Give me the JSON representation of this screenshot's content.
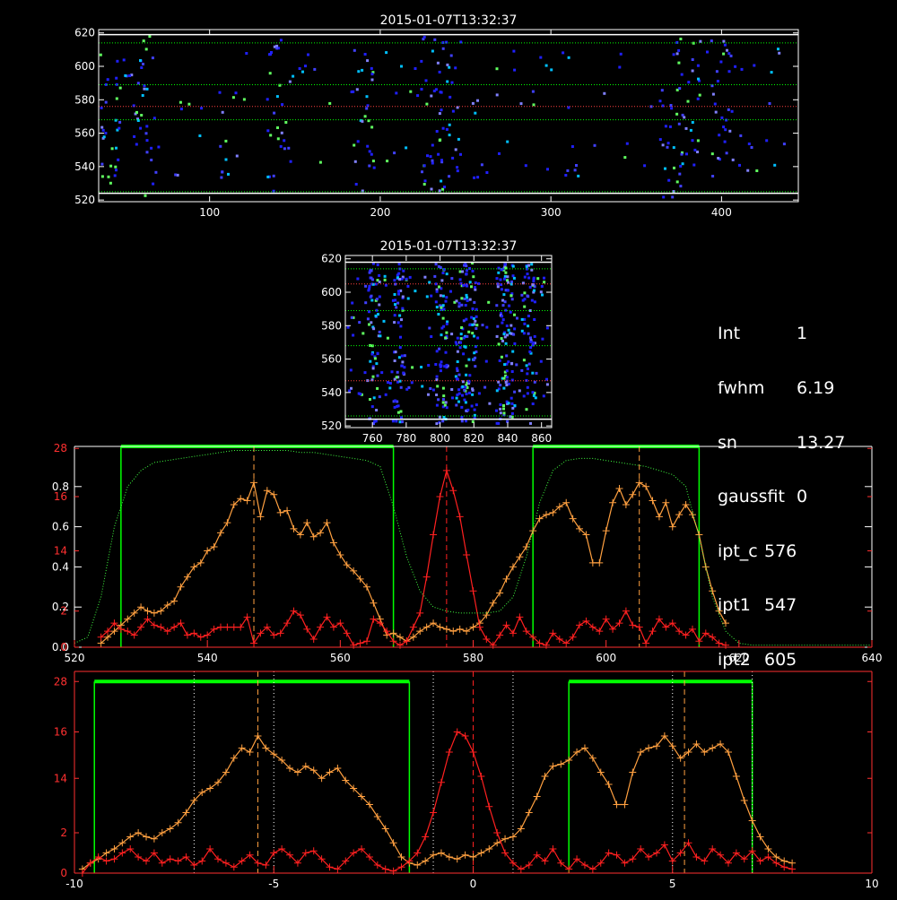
{
  "info_panel": {
    "rows": [
      {
        "label": "Int",
        "value": "1"
      },
      {
        "label": "fwhm",
        "value": "6.19"
      },
      {
        "label": "sn",
        "value": "13.27"
      },
      {
        "label": "gaussfit",
        "value": "0"
      },
      {
        "label": "ipt_c",
        "value": "576"
      },
      {
        "label": "ipt1",
        "value": "547"
      },
      {
        "label": "ipt2",
        "value": "605"
      }
    ]
  },
  "colors": {
    "background": "#000000",
    "axis": "#ffffff",
    "red_axis": "#ff3030",
    "orange_series": "#ffa040",
    "red_series": "#ff2020",
    "green_band": "#00ff00",
    "green_profile": "#40ff40",
    "red_guide": "#ff4040",
    "blob_blue": "#2020ff",
    "blob_cyan": "#00c0ff",
    "blob_green": "#60ff60"
  },
  "chart_data": [
    {
      "type": "heatmap",
      "title": "2015-01-07T13:32:37",
      "xlim": [
        35,
        445
      ],
      "ylim": [
        519,
        622
      ],
      "xticks": [
        100,
        200,
        300,
        400
      ],
      "yticks": [
        520,
        540,
        560,
        580,
        600,
        620
      ],
      "guide_lines": {
        "green_y": [
          525,
          568,
          589,
          614
        ],
        "red_y": [
          576
        ],
        "white_y": [
          524,
          619
        ]
      },
      "hot_columns_x": [
        40,
        60,
        140,
        190,
        230,
        240,
        370,
        380,
        400
      ]
    },
    {
      "type": "heatmap",
      "title": "2015-01-07T13:32:37",
      "xlim": [
        744,
        866
      ],
      "ylim": [
        519,
        622
      ],
      "xticks": [
        760,
        780,
        800,
        820,
        840,
        860
      ],
      "yticks": [
        520,
        540,
        560,
        580,
        600,
        620
      ],
      "guide_lines": {
        "green_y": [
          526,
          568,
          589,
          614
        ],
        "red_y": [
          547,
          605
        ],
        "white_y": [
          524,
          618
        ]
      },
      "hot_columns_x": [
        760,
        775,
        800,
        812,
        818,
        836,
        840,
        852
      ]
    },
    {
      "type": "line",
      "xlim": [
        520,
        640
      ],
      "ylim_left": [
        0,
        1.0
      ],
      "xticks": [
        520,
        540,
        560,
        580,
        600,
        620,
        640
      ],
      "yticks_white": [
        "0.0",
        "0.2",
        "0.4",
        "0.6",
        "0.8"
      ],
      "yticks_white_values": [
        0,
        0.2,
        0.4,
        0.6,
        0.8
      ],
      "yticks_red": [
        "0",
        "2",
        "14",
        "16",
        "28"
      ],
      "yticks_red_values": [
        0,
        0.18,
        0.48,
        0.75,
        0.99
      ],
      "green_bands": [
        [
          527,
          568
        ],
        [
          589,
          614
        ]
      ],
      "green_bar_y": 1.0,
      "center_x": 576,
      "dashed_orange_x": [
        547,
        605
      ],
      "series": [
        {
          "color": "orange",
          "x": [
            524,
            525,
            526,
            527,
            528,
            529,
            530,
            531,
            532,
            533,
            534,
            535,
            536,
            537,
            538,
            539,
            540,
            541,
            542,
            543,
            544,
            545,
            546,
            547,
            548,
            549,
            550,
            551,
            552,
            553,
            554,
            555,
            556,
            557,
            558,
            559,
            560,
            561,
            562,
            563,
            564,
            565,
            566,
            567,
            568,
            569,
            570,
            571,
            572,
            573,
            574,
            575,
            576,
            577,
            578,
            579,
            580,
            581,
            582,
            583,
            584,
            585,
            586,
            587,
            588,
            589,
            590,
            591,
            592,
            593,
            594,
            595,
            596,
            597,
            598,
            599,
            600,
            601,
            602,
            603,
            604,
            605,
            606,
            607,
            608,
            609,
            610,
            611,
            612,
            613,
            614,
            615,
            616,
            617,
            618
          ],
          "values": [
            0.02,
            0.05,
            0.08,
            0.11,
            0.14,
            0.17,
            0.2,
            0.18,
            0.17,
            0.18,
            0.21,
            0.23,
            0.3,
            0.35,
            0.4,
            0.42,
            0.48,
            0.5,
            0.57,
            0.62,
            0.71,
            0.74,
            0.73,
            0.82,
            0.65,
            0.78,
            0.76,
            0.67,
            0.68,
            0.59,
            0.56,
            0.62,
            0.55,
            0.57,
            0.62,
            0.52,
            0.46,
            0.41,
            0.38,
            0.34,
            0.3,
            0.22,
            0.14,
            0.06,
            0.07,
            0.05,
            0.03,
            0.05,
            0.08,
            0.1,
            0.12,
            0.1,
            0.09,
            0.08,
            0.09,
            0.08,
            0.1,
            0.12,
            0.16,
            0.22,
            0.27,
            0.34,
            0.4,
            0.45,
            0.5,
            0.58,
            0.64,
            0.66,
            0.67,
            0.7,
            0.72,
            0.64,
            0.59,
            0.56,
            0.42,
            0.42,
            0.58,
            0.72,
            0.79,
            0.71,
            0.76,
            0.82,
            0.8,
            0.73,
            0.65,
            0.72,
            0.6,
            0.66,
            0.71,
            0.66,
            0.56,
            0.4,
            0.28,
            0.18,
            0.12
          ]
        },
        {
          "color": "red",
          "x": [
            524,
            525,
            526,
            527,
            528,
            529,
            530,
            531,
            532,
            533,
            534,
            535,
            536,
            537,
            538,
            539,
            540,
            541,
            542,
            543,
            544,
            545,
            546,
            547,
            548,
            549,
            550,
            551,
            552,
            553,
            554,
            555,
            556,
            557,
            558,
            559,
            560,
            561,
            562,
            563,
            564,
            565,
            566,
            567,
            568,
            569,
            570,
            571,
            572,
            573,
            574,
            575,
            576,
            577,
            578,
            579,
            580,
            581,
            582,
            583,
            584,
            585,
            586,
            587,
            588,
            589,
            590,
            591,
            592,
            593,
            594,
            595,
            596,
            597,
            598,
            599,
            600,
            601,
            602,
            603,
            604,
            605,
            606,
            607,
            608,
            609,
            610,
            611,
            612,
            613,
            614,
            615,
            616,
            617,
            618
          ],
          "values": [
            0.05,
            0.08,
            0.12,
            0.09,
            0.08,
            0.06,
            0.1,
            0.14,
            0.11,
            0.1,
            0.08,
            0.1,
            0.12,
            0.06,
            0.07,
            0.05,
            0.06,
            0.09,
            0.1,
            0.1,
            0.1,
            0.1,
            0.15,
            0.02,
            0.07,
            0.1,
            0.06,
            0.07,
            0.12,
            0.18,
            0.16,
            0.09,
            0.04,
            0.1,
            0.15,
            0.1,
            0.12,
            0.07,
            0.01,
            0.02,
            0.03,
            0.14,
            0.12,
            0.08,
            0.03,
            0.01,
            0.03,
            0.1,
            0.17,
            0.35,
            0.56,
            0.75,
            0.88,
            0.78,
            0.65,
            0.46,
            0.28,
            0.1,
            0.04,
            0.01,
            0.06,
            0.11,
            0.07,
            0.15,
            0.08,
            0.05,
            0.02,
            0.01,
            0.07,
            0.04,
            0.02,
            0.05,
            0.11,
            0.13,
            0.1,
            0.08,
            0.14,
            0.09,
            0.12,
            0.18,
            0.11,
            0.1,
            0.02,
            0.08,
            0.14,
            0.1,
            0.12,
            0.08,
            0.06,
            0.09,
            0.03,
            0.07,
            0.05,
            0.02,
            0.01
          ]
        },
        {
          "color": "green",
          "x": [
            520,
            522,
            524,
            526,
            528,
            530,
            532,
            534,
            536,
            538,
            540,
            542,
            544,
            546,
            548,
            550,
            552,
            554,
            556,
            558,
            560,
            562,
            564,
            566,
            568,
            570,
            572,
            574,
            576,
            578,
            580,
            582,
            584,
            586,
            588,
            590,
            592,
            594,
            596,
            598,
            600,
            602,
            604,
            606,
            608,
            610,
            612,
            614,
            616,
            618,
            620,
            622,
            624,
            626,
            628,
            630,
            632,
            634,
            636,
            638,
            640
          ],
          "values": [
            0.02,
            0.05,
            0.25,
            0.6,
            0.8,
            0.88,
            0.92,
            0.93,
            0.94,
            0.95,
            0.96,
            0.97,
            0.98,
            0.98,
            0.98,
            0.98,
            0.98,
            0.97,
            0.97,
            0.96,
            0.95,
            0.94,
            0.93,
            0.9,
            0.7,
            0.45,
            0.28,
            0.2,
            0.18,
            0.17,
            0.17,
            0.17,
            0.18,
            0.25,
            0.45,
            0.72,
            0.88,
            0.93,
            0.94,
            0.94,
            0.93,
            0.92,
            0.91,
            0.9,
            0.88,
            0.86,
            0.8,
            0.55,
            0.25,
            0.08,
            0.02,
            0.01,
            0.01,
            0.01,
            0.01,
            0.01,
            0.01,
            0.01,
            0.01,
            0.01,
            0.01
          ]
        }
      ]
    },
    {
      "type": "line",
      "xlim": [
        -10,
        10
      ],
      "ylim_left": [
        0,
        1.0
      ],
      "xticks": [
        -10,
        -5,
        0,
        5,
        10
      ],
      "yticks_red": [
        "0",
        "2",
        "14",
        "16",
        "28"
      ],
      "yticks_red_values": [
        0,
        0.2,
        0.47,
        0.7,
        0.95
      ],
      "green_bands": [
        [
          -9.5,
          -1.6
        ],
        [
          2.4,
          7.0
        ]
      ],
      "green_bar_y": 0.95,
      "center_x": 0,
      "dashed_orange_x": [
        -5.4,
        5.3
      ],
      "dotted_white_x": [
        -7.0,
        -5.0,
        -1.0,
        1.0,
        5.0,
        7.0
      ],
      "series": [
        {
          "color": "orange",
          "x": [
            -9.8,
            -9.6,
            -9.4,
            -9.2,
            -9.0,
            -8.8,
            -8.6,
            -8.4,
            -8.2,
            -8.0,
            -7.8,
            -7.6,
            -7.4,
            -7.2,
            -7.0,
            -6.8,
            -6.6,
            -6.4,
            -6.2,
            -6.0,
            -5.8,
            -5.6,
            -5.4,
            -5.2,
            -5.0,
            -4.8,
            -4.6,
            -4.4,
            -4.2,
            -4.0,
            -3.8,
            -3.6,
            -3.4,
            -3.2,
            -3.0,
            -2.8,
            -2.6,
            -2.4,
            -2.2,
            -2.0,
            -1.8,
            -1.6,
            -1.4,
            -1.2,
            -1.0,
            -0.8,
            -0.6,
            -0.4,
            -0.2,
            0.0,
            0.2,
            0.4,
            0.6,
            0.8,
            1.0,
            1.2,
            1.4,
            1.6,
            1.8,
            2.0,
            2.2,
            2.4,
            2.6,
            2.8,
            3.0,
            3.2,
            3.4,
            3.6,
            3.8,
            4.0,
            4.2,
            4.4,
            4.6,
            4.8,
            5.0,
            5.2,
            5.4,
            5.6,
            5.8,
            6.0,
            6.2,
            6.4,
            6.6,
            6.8,
            7.0,
            7.2,
            7.4,
            7.6,
            7.8,
            8.0
          ],
          "values": [
            0.02,
            0.05,
            0.07,
            0.1,
            0.12,
            0.15,
            0.18,
            0.2,
            0.18,
            0.17,
            0.2,
            0.22,
            0.25,
            0.3,
            0.36,
            0.4,
            0.42,
            0.45,
            0.5,
            0.57,
            0.62,
            0.6,
            0.68,
            0.62,
            0.59,
            0.56,
            0.52,
            0.5,
            0.53,
            0.51,
            0.47,
            0.5,
            0.52,
            0.46,
            0.42,
            0.38,
            0.34,
            0.28,
            0.22,
            0.15,
            0.08,
            0.05,
            0.04,
            0.06,
            0.09,
            0.1,
            0.08,
            0.07,
            0.09,
            0.08,
            0.1,
            0.12,
            0.15,
            0.17,
            0.18,
            0.22,
            0.3,
            0.38,
            0.48,
            0.53,
            0.54,
            0.56,
            0.6,
            0.62,
            0.57,
            0.5,
            0.44,
            0.34,
            0.34,
            0.5,
            0.6,
            0.62,
            0.63,
            0.68,
            0.63,
            0.57,
            0.6,
            0.64,
            0.6,
            0.62,
            0.64,
            0.6,
            0.48,
            0.36,
            0.26,
            0.18,
            0.12,
            0.08,
            0.06,
            0.05
          ]
        },
        {
          "color": "red",
          "x": [
            -9.8,
            -9.6,
            -9.4,
            -9.2,
            -9.0,
            -8.8,
            -8.6,
            -8.4,
            -8.2,
            -8.0,
            -7.8,
            -7.6,
            -7.4,
            -7.2,
            -7.0,
            -6.8,
            -6.6,
            -6.4,
            -6.2,
            -6.0,
            -5.8,
            -5.6,
            -5.4,
            -5.2,
            -5.0,
            -4.8,
            -4.6,
            -4.4,
            -4.2,
            -4.0,
            -3.8,
            -3.6,
            -3.4,
            -3.2,
            -3.0,
            -2.8,
            -2.6,
            -2.4,
            -2.2,
            -2.0,
            -1.8,
            -1.6,
            -1.4,
            -1.2,
            -1.0,
            -0.8,
            -0.6,
            -0.4,
            -0.2,
            0.0,
            0.2,
            0.4,
            0.6,
            0.8,
            1.0,
            1.2,
            1.4,
            1.6,
            1.8,
            2.0,
            2.2,
            2.4,
            2.6,
            2.8,
            3.0,
            3.2,
            3.4,
            3.6,
            3.8,
            4.0,
            4.2,
            4.4,
            4.6,
            4.8,
            5.0,
            5.2,
            5.4,
            5.6,
            5.8,
            6.0,
            6.2,
            6.4,
            6.6,
            6.8,
            7.0,
            7.2,
            7.4,
            7.6,
            7.8,
            8.0
          ],
          "values": [
            0.0,
            0.05,
            0.08,
            0.06,
            0.07,
            0.1,
            0.12,
            0.08,
            0.06,
            0.1,
            0.05,
            0.07,
            0.06,
            0.08,
            0.04,
            0.06,
            0.12,
            0.07,
            0.05,
            0.03,
            0.06,
            0.09,
            0.05,
            0.04,
            0.1,
            0.12,
            0.09,
            0.05,
            0.1,
            0.11,
            0.07,
            0.03,
            0.02,
            0.06,
            0.1,
            0.12,
            0.08,
            0.04,
            0.02,
            0.01,
            0.03,
            0.06,
            0.1,
            0.18,
            0.3,
            0.45,
            0.6,
            0.7,
            0.68,
            0.6,
            0.48,
            0.33,
            0.2,
            0.1,
            0.05,
            0.02,
            0.04,
            0.09,
            0.06,
            0.12,
            0.05,
            0.02,
            0.07,
            0.04,
            0.02,
            0.05,
            0.1,
            0.09,
            0.05,
            0.07,
            0.12,
            0.08,
            0.1,
            0.14,
            0.06,
            0.1,
            0.15,
            0.08,
            0.06,
            0.12,
            0.09,
            0.05,
            0.1,
            0.07,
            0.11,
            0.06,
            0.08,
            0.05,
            0.03,
            0.02
          ]
        }
      ]
    }
  ]
}
